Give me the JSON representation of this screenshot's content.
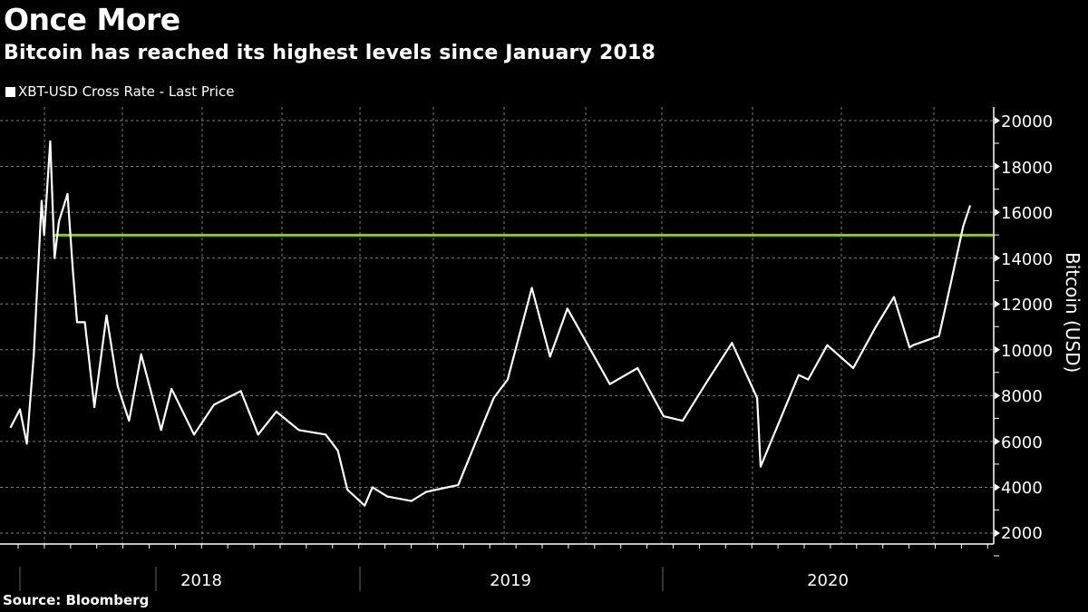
{
  "header": {
    "title": "Once More",
    "subtitle": "Bitcoin has reached its highest levels since January 2018"
  },
  "legend": {
    "items": [
      {
        "label": "XBT-USD Cross Rate - Last Price",
        "color": "#ffffff"
      }
    ]
  },
  "footer": {
    "source": "Source: Bloomberg"
  },
  "colors": {
    "background": "#000000",
    "series": "#ffffff",
    "reference_line": "#8cc63f",
    "grid": "#7a7a7a"
  },
  "axes": {
    "y_label": "Bitcoin (USD)",
    "y_ticks": [
      "20000",
      "18000",
      "16000",
      "14000",
      "12000",
      "10000",
      "8000",
      "6000",
      "4000",
      "2000"
    ],
    "x_years": [
      "2018",
      "2019",
      "2020"
    ]
  },
  "chart_data": {
    "type": "line",
    "title": "Once More",
    "subtitle": "Bitcoin has reached its highest levels since January 2018",
    "xlabel": "",
    "ylabel": "Bitcoin (USD)",
    "ylim": [
      1500,
      20500
    ],
    "y_ticks": [
      2000,
      4000,
      6000,
      8000,
      10000,
      12000,
      14000,
      16000,
      18000,
      20000
    ],
    "x_tick_labels": [
      "2018",
      "2019",
      "2020"
    ],
    "grid": true,
    "legend_position": "top-left",
    "source": "Bloomberg",
    "reference_lines": [
      {
        "axis": "y",
        "value": 15000,
        "color": "#8cc63f",
        "from": "2017-12-17",
        "to": "2020-11-13"
      }
    ],
    "series": [
      {
        "name": "XBT-USD Cross Rate - Last Price",
        "color": "#ffffff",
        "x": [
          "2017-11-01",
          "2017-11-12",
          "2017-11-20",
          "2017-11-28",
          "2017-12-07",
          "2017-12-10",
          "2017-12-17",
          "2017-12-22",
          "2017-12-27",
          "2018-01-06",
          "2018-01-12",
          "2018-01-17",
          "2018-01-26",
          "2018-02-06",
          "2018-02-20",
          "2018-03-05",
          "2018-03-18",
          "2018-04-01",
          "2018-04-24",
          "2018-05-06",
          "2018-06-01",
          "2018-06-24",
          "2018-07-25",
          "2018-08-14",
          "2018-09-04",
          "2018-09-30",
          "2018-10-31",
          "2018-11-14",
          "2018-11-25",
          "2018-12-15",
          "2018-12-24",
          "2019-01-10",
          "2019-02-07",
          "2019-02-24",
          "2019-04-02",
          "2019-05-13",
          "2019-05-29",
          "2019-06-26",
          "2019-07-17",
          "2019-08-06",
          "2019-09-24",
          "2019-10-26",
          "2019-11-25",
          "2019-12-17",
          "2020-01-14",
          "2020-02-12",
          "2020-03-12",
          "2020-03-16",
          "2020-04-29",
          "2020-05-10",
          "2020-06-01",
          "2020-07-01",
          "2020-07-27",
          "2020-08-17",
          "2020-09-04",
          "2020-09-08",
          "2020-10-08",
          "2020-10-21",
          "2020-11-05",
          "2020-11-13"
        ],
        "values": [
          6600,
          7400,
          5900,
          9800,
          16500,
          15000,
          19100,
          14000,
          15600,
          16800,
          13500,
          11200,
          11200,
          7500,
          11500,
          8400,
          6900,
          9800,
          6500,
          8300,
          6300,
          7600,
          8200,
          6300,
          7300,
          6500,
          6300,
          5600,
          3900,
          3200,
          4000,
          3600,
          3400,
          3800,
          4100,
          7900,
          8700,
          12700,
          9700,
          11800,
          8500,
          9200,
          7100,
          6900,
          8600,
          10300,
          7900,
          4900,
          8900,
          8700,
          10200,
          9200,
          11000,
          12300,
          10100,
          10200,
          10600,
          12800,
          15400,
          16300
        ]
      }
    ]
  }
}
